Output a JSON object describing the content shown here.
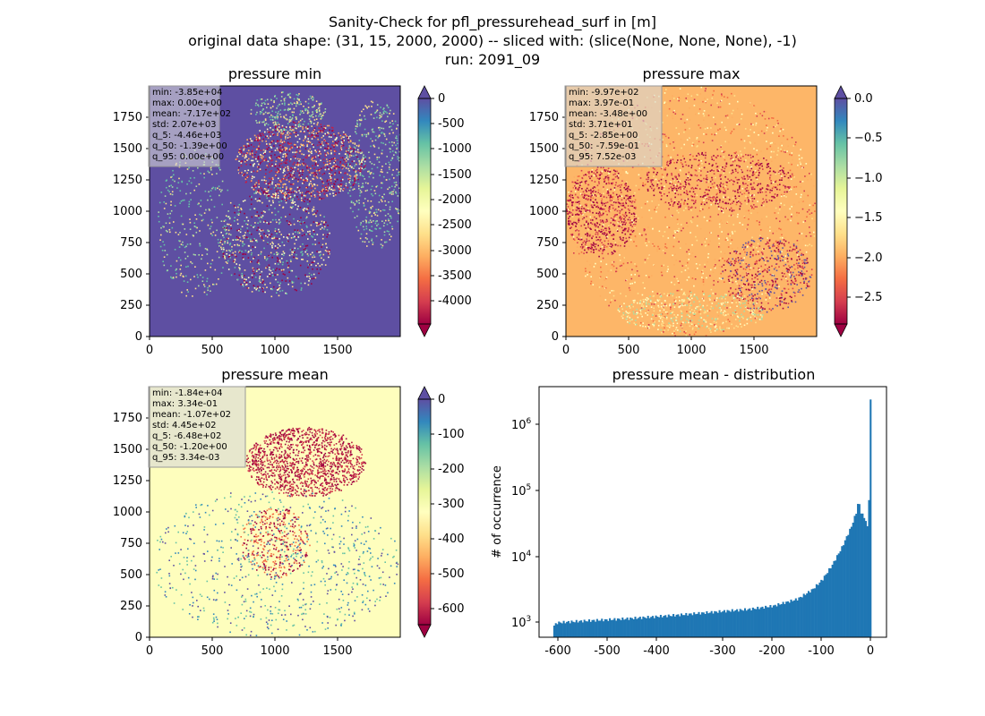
{
  "figure": {
    "suptitle": [
      "Sanity-Check for pfl_pressurehead_surf in [m]",
      "original data shape: (31, 15, 2000, 2000) -- sliced with: (slice(None, None, None), -1)",
      "run: 2091_09"
    ]
  },
  "chart_data": [
    {
      "type": "heatmap",
      "title": "pressure min",
      "xlim": [
        0,
        2000
      ],
      "ylim": [
        0,
        2000
      ],
      "xticks": [
        0,
        500,
        1000,
        1500
      ],
      "yticks": [
        0,
        250,
        500,
        750,
        1000,
        1250,
        1500,
        1750
      ],
      "colormap": "Spectral",
      "colorbar": {
        "vmin": -4460,
        "vmax": 0,
        "extend": "both",
        "ticks": [
          0,
          -500,
          -1000,
          -1500,
          -2000,
          -2500,
          -3000,
          -3500,
          -4000
        ]
      },
      "stats": [
        "min: -3.85e+04",
        "max: 0.00e+00",
        "mean: -7.17e+02",
        "std: 2.07e+03",
        "q_5: -4.46e+03",
        "q_50: -1.39e+00",
        "q_95: 0.00e+00"
      ],
      "background": "#5e4fa2"
    },
    {
      "type": "heatmap",
      "title": "pressure max",
      "xlim": [
        0,
        2000
      ],
      "ylim": [
        0,
        2000
      ],
      "xticks": [
        0,
        500,
        1000,
        1500
      ],
      "yticks": [
        0,
        250,
        500,
        750,
        1000,
        1250,
        1500,
        1750
      ],
      "colormap": "Spectral",
      "colorbar": {
        "vmin": -2.85,
        "vmax": 0.0075,
        "extend": "both",
        "ticks": [
          0.0,
          -0.5,
          -1.0,
          -1.5,
          -2.0,
          -2.5
        ],
        "tick_labels": [
          "0.0",
          "−0.5",
          "−1.0",
          "−1.5",
          "−2.0",
          "−2.5"
        ]
      },
      "stats": [
        "min: -9.97e+02",
        "max: 3.97e-01",
        "mean: -3.48e+00",
        "std: 3.71e+01",
        "q_5: -2.85e+00",
        "q_50: -7.59e-01",
        "q_95: 7.52e-03"
      ],
      "background": "#fdb668"
    },
    {
      "type": "heatmap",
      "title": "pressure mean",
      "xlim": [
        0,
        2000
      ],
      "ylim": [
        0,
        2000
      ],
      "xticks": [
        0,
        500,
        1000,
        1500
      ],
      "yticks": [
        0,
        250,
        500,
        750,
        1000,
        1250,
        1500,
        1750
      ],
      "colormap": "Spectral",
      "colorbar": {
        "vmin": -648,
        "vmax": 0.00334,
        "extend": "max",
        "ticks": [
          0,
          -100,
          -200,
          -300,
          -400,
          -500,
          -600
        ]
      },
      "stats": [
        "min: -1.84e+04",
        "max: 3.34e-01",
        "mean: -1.07e+02",
        "std: 4.45e+02",
        "q_5: -6.48e+02",
        "q_50: -1.20e+00",
        "q_95: 3.34e-03"
      ],
      "background": "#fefebd"
    },
    {
      "type": "bar",
      "title": "pressure mean - distribution",
      "xlabel": "",
      "ylabel": "# of occurrence",
      "yscale": "log",
      "xlim": [
        -677,
        31
      ],
      "ylim": [
        600,
        4000000
      ],
      "xticks": [
        -600,
        -500,
        -400,
        -300,
        -200,
        -100,
        0
      ],
      "yticks": [
        1000,
        10000,
        100000,
        1000000
      ],
      "ytick_labels": [
        "10",
        "10",
        "10",
        "10"
      ],
      "ytick_exponents": [
        "3",
        "4",
        "5",
        "6"
      ],
      "bin_range": [
        -648,
        0
      ],
      "bins": 200,
      "profile_x": [
        -648,
        -640,
        -600,
        -500,
        -400,
        -300,
        -250,
        -200,
        -150,
        -120,
        -100,
        -80,
        -60,
        -40,
        -30,
        -26,
        -22,
        -16,
        -10,
        -8,
        -5,
        -3,
        0
      ],
      "profile_y": [
        880,
        1000,
        1050,
        1150,
        1300,
        1500,
        1600,
        1800,
        2300,
        3200,
        4500,
        7500,
        14000,
        30000,
        50000,
        75000,
        50000,
        42000,
        35000,
        28000,
        60000,
        2500000,
        2500000
      ],
      "bar_color": "#1f77b4"
    }
  ]
}
